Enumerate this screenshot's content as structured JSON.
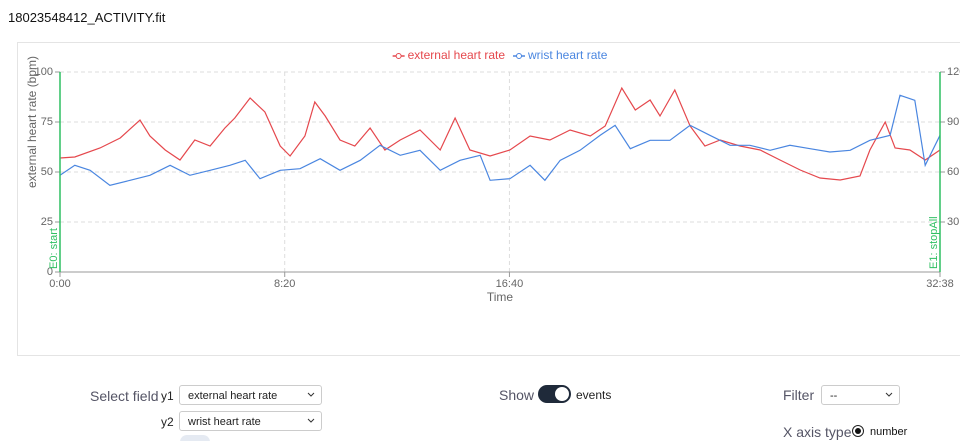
{
  "window_title": "18023548412_ACTIVITY.fit",
  "chart_data": {
    "type": "line",
    "y_label": "external heart rate (bpm)",
    "x_label": "Time",
    "xlim": [
      0,
      1958
    ],
    "xticks": [
      {
        "value": 0,
        "label": "0:00"
      },
      {
        "value": 500,
        "label": "8:20"
      },
      {
        "value": 1000,
        "label": "16:40"
      },
      {
        "value": 1958,
        "label": "32:38"
      }
    ],
    "ylim": [
      0,
      100
    ],
    "yticks": [
      0,
      25,
      50,
      75,
      100
    ],
    "y2lim": [
      0,
      120
    ],
    "y2ticks": [
      30,
      60,
      90,
      120
    ],
    "grid": true,
    "legend": "top",
    "event_color": "#2fbf62",
    "events": [
      {
        "x": 0,
        "label": "E0: start"
      },
      {
        "x": 1958,
        "label": "E1: stopAll"
      }
    ],
    "series": [
      {
        "name": "external heart rate",
        "color": "#e5484d",
        "axis": "y",
        "x": [
          0,
          33,
          89,
          134,
          178,
          200,
          234,
          267,
          300,
          334,
          367,
          389,
          423,
          456,
          490,
          512,
          545,
          567,
          590,
          623,
          656,
          690,
          723,
          757,
          801,
          846,
          879,
          912,
          957,
          1001,
          1046,
          1090,
          1135,
          1180,
          1213,
          1250,
          1280,
          1313,
          1335,
          1368,
          1402,
          1435,
          1469,
          1513,
          1558,
          1602,
          1647,
          1691,
          1736,
          1780,
          1802,
          1836,
          1858,
          1891,
          1925,
          1958
        ],
        "values": [
          57,
          57.5,
          62,
          67,
          76,
          68,
          61,
          56,
          66,
          63,
          72,
          77,
          87,
          80,
          63,
          58,
          68,
          85,
          78,
          66,
          63,
          72,
          61,
          66,
          71,
          61,
          77,
          61,
          58,
          61,
          68,
          66,
          71,
          68,
          73,
          92,
          81,
          86,
          78,
          91,
          73,
          63,
          66,
          63,
          61,
          56,
          51,
          47,
          46,
          48,
          61,
          75,
          62,
          61,
          56,
          61
        ]
      },
      {
        "name": "wrist heart rate",
        "color": "#4a86e0",
        "axis": "y2",
        "x": [
          0,
          33,
          67,
          111,
          156,
          200,
          245,
          289,
          334,
          378,
          412,
          445,
          490,
          534,
          579,
          623,
          668,
          712,
          757,
          801,
          846,
          890,
          935,
          957,
          1001,
          1046,
          1079,
          1113,
          1157,
          1202,
          1235,
          1269,
          1313,
          1357,
          1402,
          1446,
          1491,
          1535,
          1580,
          1624,
          1669,
          1713,
          1758,
          1802,
          1847,
          1869,
          1902,
          1925,
          1958
        ],
        "values": [
          58,
          64,
          61,
          52,
          55,
          58,
          64,
          58,
          61,
          64,
          67,
          56,
          61,
          62,
          68,
          61,
          67,
          76,
          70,
          73,
          61,
          67,
          70,
          55,
          56,
          64,
          55,
          67,
          73,
          82,
          88,
          74,
          79,
          79,
          88,
          82,
          76,
          76,
          73,
          76,
          74,
          72,
          73,
          79,
          82,
          106,
          103,
          64,
          82
        ]
      }
    ]
  },
  "controls": {
    "select_field_label": "Select field",
    "y1_label": "y1",
    "y1_value": "external heart rate",
    "y2_label": "y2",
    "y2_value": "wrist heart rate",
    "show_label": "Show",
    "show_option": "events",
    "filter_label": "Filter",
    "filter_value": "--",
    "x_axis_type_label": "X axis type",
    "x_axis_type_option": "number"
  }
}
